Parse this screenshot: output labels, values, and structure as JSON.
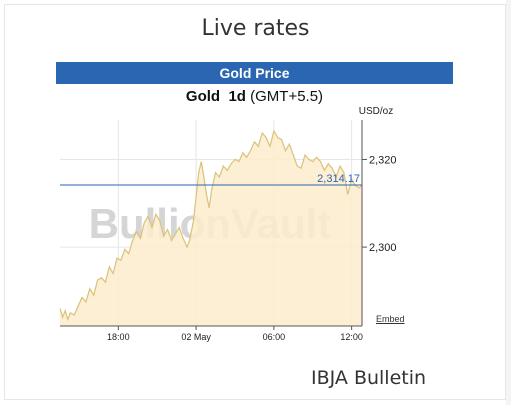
{
  "widget": {
    "heading": "Live rates",
    "banner": "Gold Price",
    "subtitle_metal": "Gold",
    "subtitle_period": "1d",
    "subtitle_tz": "(GMT+5.5)",
    "watermark": "BullionVault",
    "embed_label": "Embed",
    "footer": "IBJA Bulletin"
  },
  "colors": {
    "banner": "#2a66b1",
    "line": "#d9c27a",
    "fill": "#fdeccd",
    "current_line": "#2a66b1"
  },
  "chart_data": {
    "type": "area",
    "title": "Gold 1d (GMT+5.5)",
    "ylabel": "USD/oz",
    "y_ticks": [
      2300,
      2320
    ],
    "y_tick_labels": [
      "2,300",
      "2,320"
    ],
    "x_ticks": [
      18,
      24,
      30,
      36
    ],
    "x_tick_labels": [
      "18:00",
      "02 May",
      "06:00",
      "12:00"
    ],
    "ylim": [
      2282,
      2329
    ],
    "xlim": [
      13.5,
      36.8
    ],
    "grid": true,
    "current_value": 2314.17,
    "current_label": "2,314.17",
    "series": [
      {
        "x": [
          13.5,
          13.7,
          13.9,
          14.1,
          14.3,
          14.6,
          14.9,
          15.2,
          15.5,
          15.8,
          16.1,
          16.4,
          16.7,
          17.0,
          17.3,
          17.6,
          17.9,
          18.2,
          18.5,
          18.8,
          19.1,
          19.4,
          19.7,
          20.0,
          20.3,
          20.6,
          20.9,
          21.2,
          21.5,
          21.8,
          22.1,
          22.4,
          22.7,
          23.0,
          23.3,
          23.5,
          23.8,
          24.0,
          24.2,
          24.4,
          24.6,
          24.8,
          25.0,
          25.2,
          25.5,
          25.8,
          26.1,
          26.4,
          26.7,
          27.0,
          27.3,
          27.6,
          27.9,
          28.2,
          28.5,
          28.8,
          29.1,
          29.4,
          29.7,
          30.0,
          30.3,
          30.6,
          30.9,
          31.2,
          31.5,
          31.8,
          32.1,
          32.4,
          32.7,
          33.0,
          33.3,
          33.6,
          33.9,
          34.2,
          34.5,
          34.8,
          35.1,
          35.4,
          35.7,
          36.0,
          36.3,
          36.6,
          36.8
        ],
        "y": [
          2286.0,
          2284.0,
          2285.5,
          2283.5,
          2285.0,
          2284.5,
          2286.5,
          2288.5,
          2287.5,
          2290.5,
          2289.0,
          2292.5,
          2293.0,
          2292.0,
          2295.5,
          2294.0,
          2297.5,
          2297.0,
          2299.5,
          2298.5,
          2301.5,
          2303.5,
          2302.0,
          2305.5,
          2307.0,
          2304.5,
          2307.5,
          2306.0,
          2302.5,
          2304.0,
          2301.5,
          2303.0,
          2304.5,
          2302.0,
          2300.0,
          2301.5,
          2306.0,
          2311.5,
          2317.0,
          2319.5,
          2316.0,
          2312.0,
          2309.0,
          2313.0,
          2317.0,
          2316.0,
          2318.5,
          2317.5,
          2319.0,
          2320.0,
          2319.5,
          2321.5,
          2320.5,
          2322.0,
          2324.0,
          2323.0,
          2326.0,
          2325.0,
          2323.0,
          2326.5,
          2325.0,
          2324.5,
          2322.0,
          2323.5,
          2321.0,
          2318.5,
          2318.0,
          2321.0,
          2320.0,
          2319.5,
          2320.5,
          2319.5,
          2317.5,
          2319.0,
          2318.0,
          2316.0,
          2318.5,
          2317.0,
          2312.0,
          2315.5,
          2314.0,
          2313.5,
          2314.2
        ]
      }
    ]
  }
}
